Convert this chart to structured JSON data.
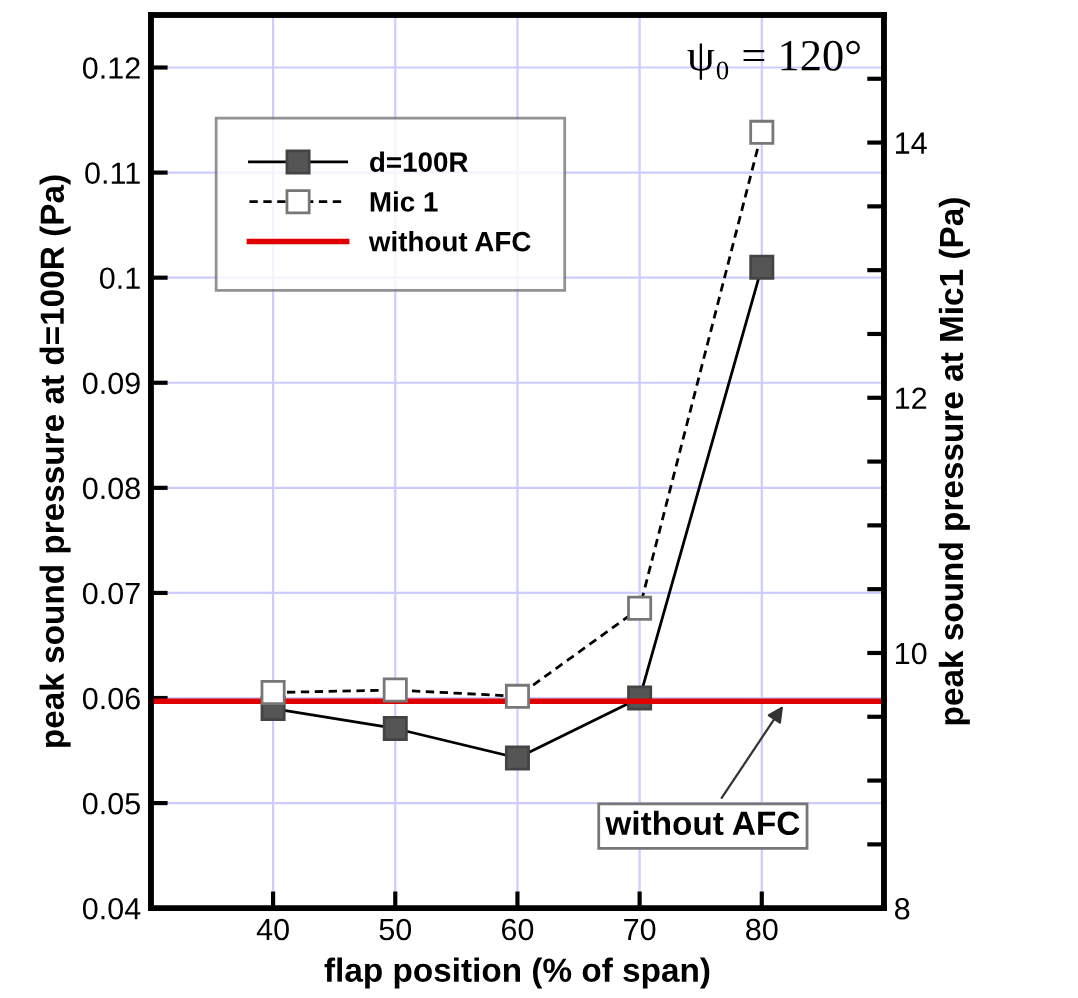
{
  "chart_data": {
    "type": "line",
    "xlabel": "flap position (% of span)",
    "ylabel": "peak sound pressure at d=100R (Pa)",
    "y2label": "peak sound pressure at Mic1 (Pa)",
    "x": [
      40,
      50,
      60,
      70,
      80
    ],
    "series": [
      {
        "name": "d=100R",
        "color": "#000000",
        "values": [
          0.059,
          0.0571,
          0.0543,
          0.06,
          0.101
        ],
        "marker": "square",
        "line_style": "solid"
      },
      {
        "name": "Mic 1",
        "color": "#000000",
        "values": [
          9.69,
          9.71,
          9.66,
          10.35,
          14.08
        ],
        "marker": "square",
        "line_style": "dashed",
        "axis": "y2"
      },
      {
        "name": "without AFC",
        "color": "#e00000",
        "type": "line",
        "x": [
          30,
          90
        ],
        "values": [
          0.0597,
          0.0597
        ],
        "marker": "none",
        "line_style": "solid"
      }
    ],
    "xlim": [
      30,
      90
    ],
    "xticks": [
      40,
      50,
      60,
      70,
      80
    ],
    "ylim": [
      0.04,
      0.125
    ],
    "yticks": [
      0.04,
      0.05,
      0.06,
      0.07,
      0.08,
      0.09,
      0.1,
      0.11,
      0.12
    ],
    "y2lim": [
      8,
      15
    ],
    "y2ticks": [
      8,
      {
        "value": 8.5,
        "label": null
      },
      {
        "value": 9,
        "label": null
      },
      {
        "value": 9.5,
        "label": null
      },
      10,
      {
        "value": 10.5,
        "label": null
      },
      {
        "value": 11,
        "label": null
      },
      {
        "value": 11.5,
        "label": null
      },
      12,
      {
        "value": 12.5,
        "label": null
      },
      {
        "value": 13,
        "label": null
      },
      {
        "value": 13.5,
        "label": null
      },
      14,
      {
        "value": 14.5,
        "label": null
      }
    ],
    "grid": true,
    "legend": "top left",
    "annotations": [
      "ψ₀ = 120°",
      {
        "text": "without AFC",
        "x": 82,
        "y": 0.0597
      }
    ]
  }
}
